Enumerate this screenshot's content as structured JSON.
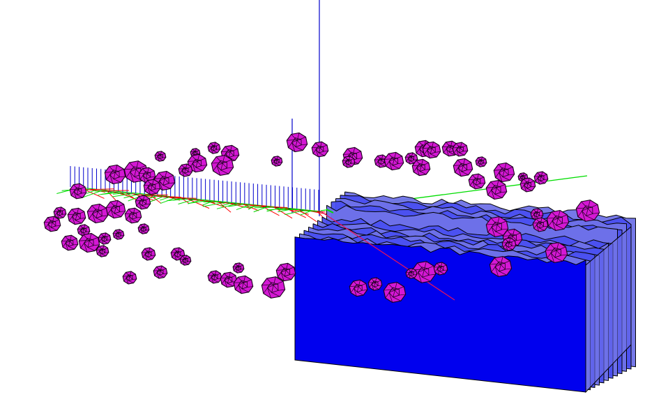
{
  "scene": {
    "background": "#ffffff",
    "colors": {
      "blob_fill": "#d418d4",
      "blob_edge": "#1a001a",
      "slab_fill": "#0000ee",
      "slab_fill_light": "#6f72e8",
      "slab_edge": "#000000",
      "axis_x": "#ff0000",
      "axis_y": "#00dd00",
      "axis_z": "#0000cc"
    },
    "objects": [
      "polyhedron-cluster",
      "stacked-slab-volume",
      "coordinate-axes",
      "vector-glyphs"
    ]
  }
}
